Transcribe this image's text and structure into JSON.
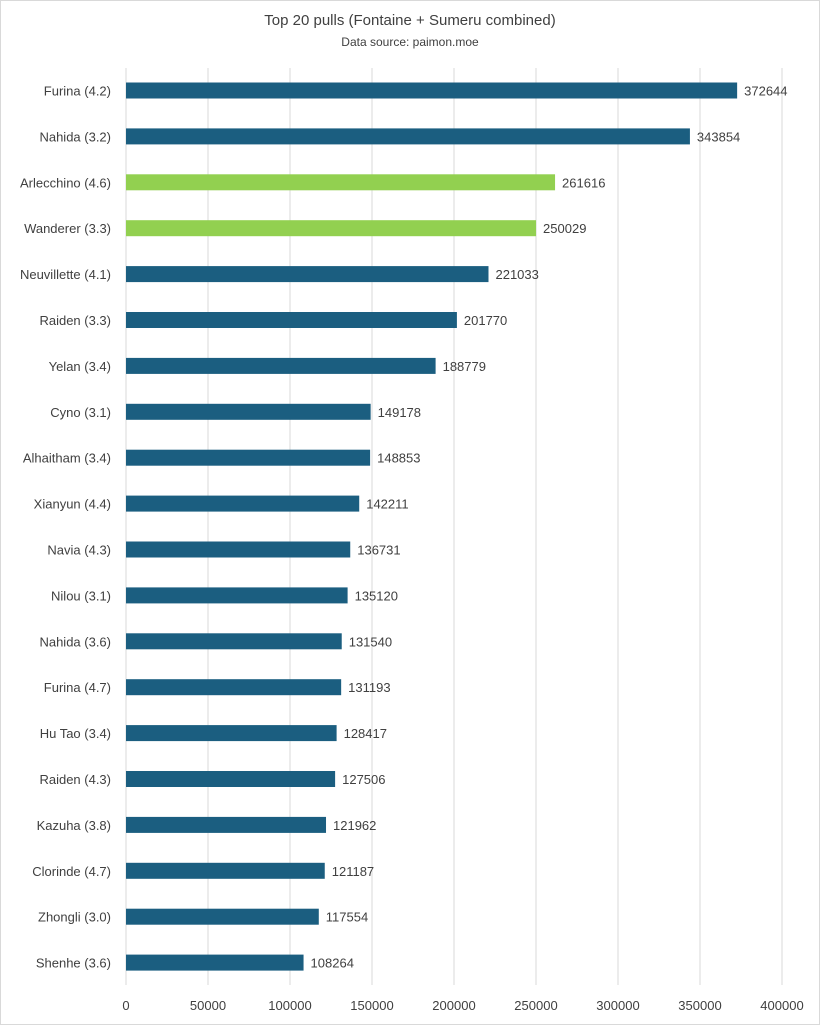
{
  "chart_data": {
    "type": "bar",
    "orientation": "horizontal",
    "title": "Top 20 pulls (Fontaine + Sumeru combined)",
    "subtitle": "Data source: paimon.moe",
    "xlim": [
      0,
      400000
    ],
    "xticks": [
      0,
      50000,
      100000,
      150000,
      200000,
      250000,
      300000,
      350000,
      400000
    ],
    "grid": true,
    "legend": "none",
    "colors": {
      "default": "#1b5e80",
      "highlight": "#92d050"
    },
    "categories": [
      "Furina (4.2)",
      "Nahida (3.2)",
      "Arlecchino (4.6)",
      "Wanderer (3.3)",
      "Neuvillette (4.1)",
      "Raiden (3.3)",
      "Yelan (3.4)",
      "Cyno (3.1)",
      "Alhaitham (3.4)",
      "Xianyun (4.4)",
      "Navia (4.3)",
      "Nilou (3.1)",
      "Nahida (3.6)",
      "Furina (4.7)",
      "Hu Tao (3.4)",
      "Raiden (4.3)",
      "Kazuha (3.8)",
      "Clorinde (4.7)",
      "Zhongli (3.0)",
      "Shenhe (3.6)"
    ],
    "values": [
      372644,
      343854,
      261616,
      250029,
      221033,
      201770,
      188779,
      149178,
      148853,
      142211,
      136731,
      135120,
      131540,
      131193,
      128417,
      127506,
      121962,
      121187,
      117554,
      108264
    ],
    "highlighted": [
      false,
      false,
      true,
      true,
      false,
      false,
      false,
      false,
      false,
      false,
      false,
      false,
      false,
      false,
      false,
      false,
      false,
      false,
      false,
      false
    ]
  }
}
